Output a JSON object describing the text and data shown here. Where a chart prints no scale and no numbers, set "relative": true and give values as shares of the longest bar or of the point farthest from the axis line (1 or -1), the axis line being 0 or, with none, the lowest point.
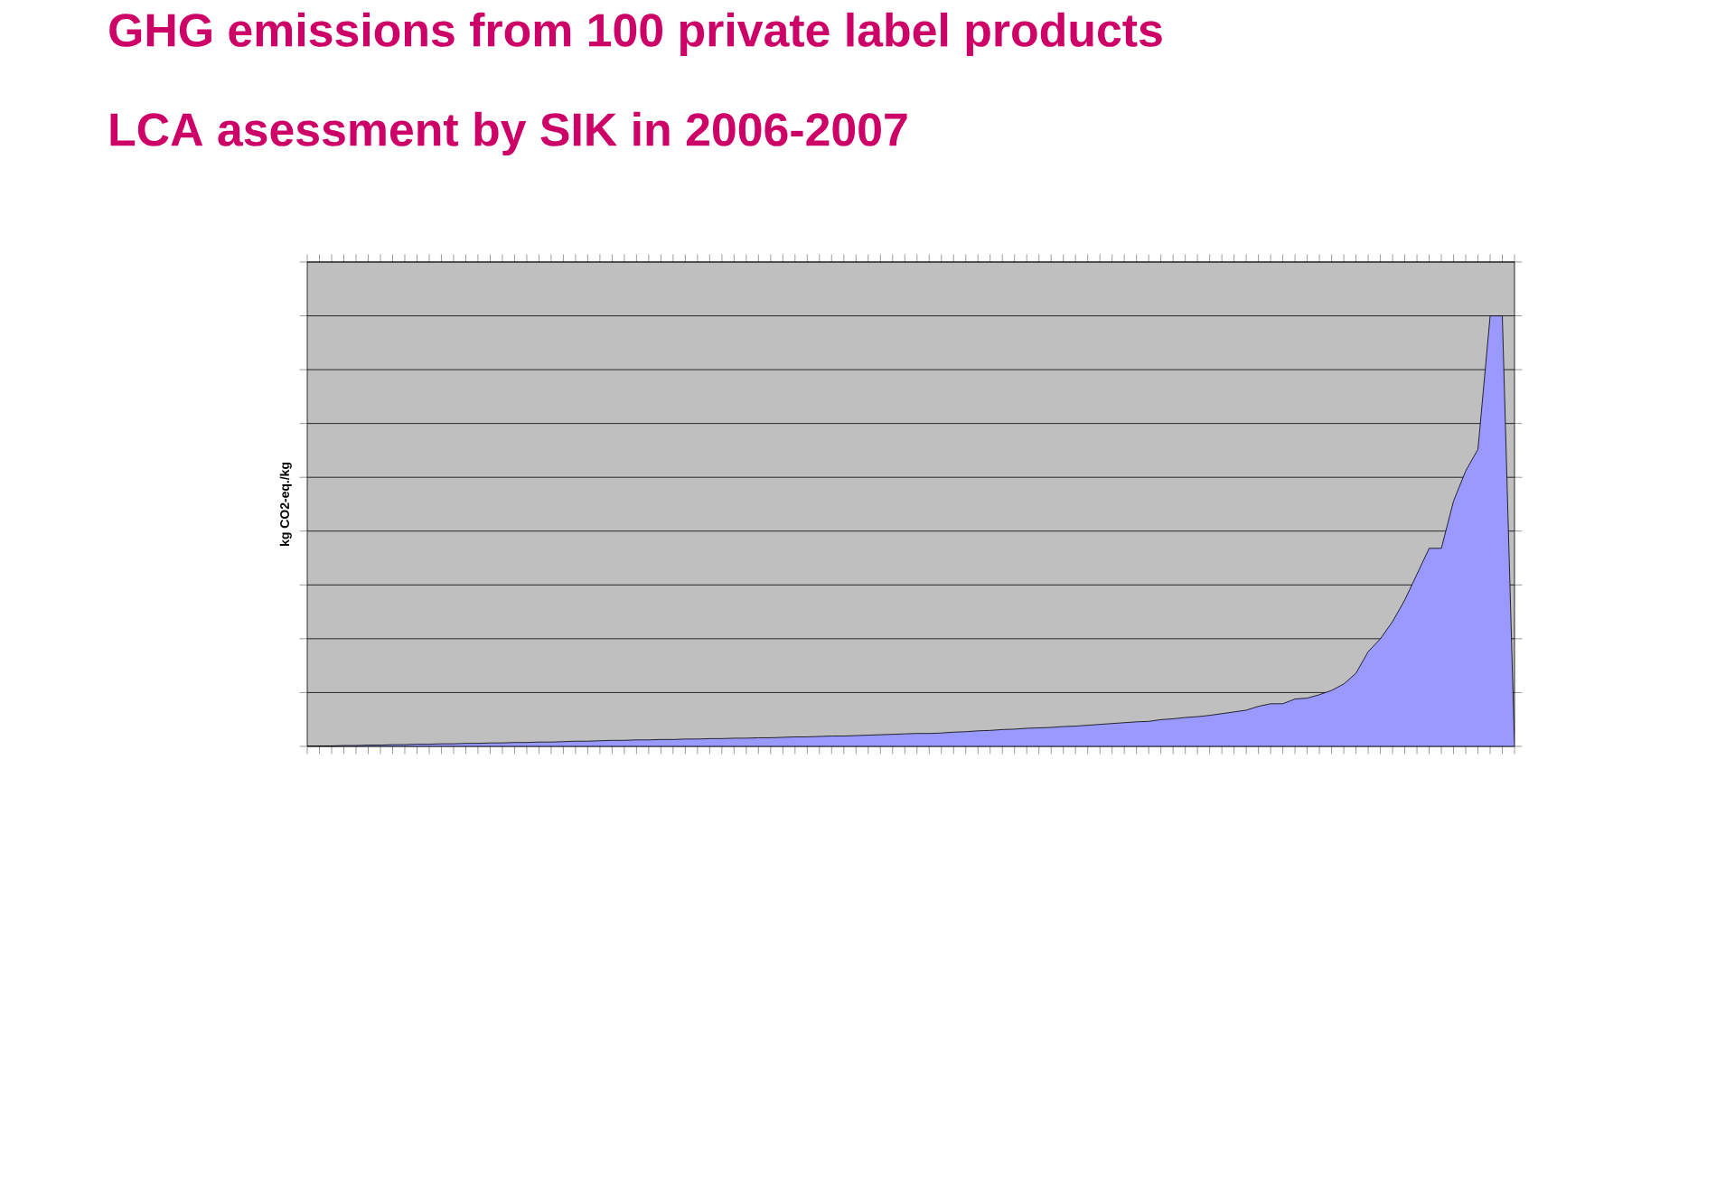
{
  "chart_data": {
    "type": "area",
    "title": "GHG emissions from 100 private label products",
    "subtitle": "LCA asessment by SIK in 2006-2007",
    "ylabel": "kg CO2-eq./kg",
    "categories": [
      null,
      null,
      null,
      null,
      null,
      null,
      null,
      null,
      null,
      null,
      null,
      null,
      null,
      null,
      null,
      null,
      null,
      null,
      null,
      null,
      null,
      null,
      null,
      null,
      null,
      null,
      null,
      null,
      null,
      null,
      null,
      null,
      null,
      null,
      null,
      null,
      null,
      null,
      null,
      null,
      null,
      null,
      null,
      null,
      null,
      null,
      null,
      null,
      null,
      null,
      null,
      null,
      null,
      null,
      null,
      null,
      null,
      null,
      null,
      null,
      null,
      null,
      null,
      null,
      null,
      null,
      null,
      null,
      null,
      null,
      null,
      null,
      null,
      null,
      null,
      null,
      null,
      null,
      null,
      null,
      null,
      null,
      null,
      null,
      null,
      null,
      null,
      null,
      null,
      null,
      null,
      null,
      null,
      null,
      null,
      null,
      null,
      null,
      null,
      null
    ],
    "values": [
      0.0,
      0.001,
      0.001,
      0.002,
      0.002,
      0.003,
      0.003,
      0.004,
      0.004,
      0.005,
      0.005,
      0.006,
      0.006,
      0.007,
      0.007,
      0.008,
      0.008,
      0.009,
      0.009,
      0.01,
      0.01,
      0.011,
      0.012,
      0.012,
      0.013,
      0.014,
      0.014,
      0.015,
      0.015,
      0.016,
      0.016,
      0.017,
      0.017,
      0.018,
      0.018,
      0.019,
      0.019,
      0.02,
      0.02,
      0.021,
      0.022,
      0.022,
      0.023,
      0.024,
      0.024,
      0.025,
      0.026,
      0.027,
      0.028,
      0.029,
      0.03,
      0.03,
      0.031,
      0.033,
      0.034,
      0.036,
      0.037,
      0.039,
      0.04,
      0.042,
      0.043,
      0.044,
      0.046,
      0.047,
      0.049,
      0.051,
      0.053,
      0.055,
      0.057,
      0.058,
      0.062,
      0.064,
      0.067,
      0.069,
      0.072,
      0.076,
      0.08,
      0.084,
      0.093,
      0.099,
      0.099,
      0.11,
      0.112,
      0.12,
      0.13,
      0.145,
      0.17,
      0.22,
      0.25,
      0.29,
      0.34,
      0.4,
      0.46,
      0.46,
      0.57,
      0.64,
      0.69,
      1.0,
      1.0,
      0.0
    ],
    "color": "#9999ff",
    "relative": true,
    "grid": "y"
  }
}
